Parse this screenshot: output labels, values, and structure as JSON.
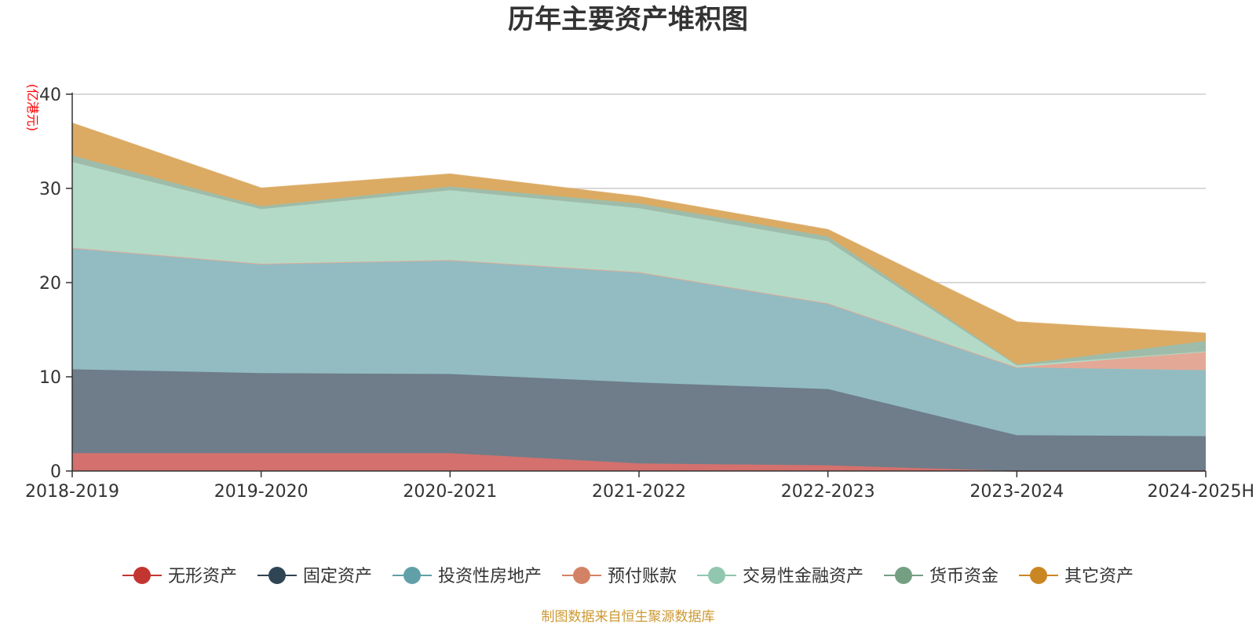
{
  "chart_data": {
    "type": "area",
    "stacked": true,
    "title": "历年主要资产堆积图",
    "unit_label": "(亿港元)",
    "source_note": "制图数据来自恒生聚源数据库",
    "categories": [
      "2018-2019",
      "2019-2020",
      "2020-2021",
      "2021-2022",
      "2022-2023",
      "2023-2024",
      "2024-2025H"
    ],
    "ylim": [
      0,
      40
    ],
    "yticks": [
      0,
      10,
      20,
      30,
      40
    ],
    "ytick_labels": [
      "0",
      "10",
      "20",
      "30",
      "40"
    ],
    "grid": true,
    "legend_position": "bottom",
    "series": [
      {
        "name": "无形资产",
        "color": "#c23531",
        "fill": "#d4706d",
        "values": [
          1.9,
          1.9,
          1.9,
          0.8,
          0.6,
          0.0,
          0.0
        ]
      },
      {
        "name": "固定资产",
        "color": "#2f4554",
        "fill": "#6e7d89",
        "values": [
          8.9,
          8.5,
          8.4,
          8.6,
          8.1,
          3.8,
          3.7
        ]
      },
      {
        "name": "投资性房地产",
        "color": "#61a0a8",
        "fill": "#92bcc2",
        "values": [
          12.9,
          11.6,
          12.1,
          11.7,
          9.1,
          7.2,
          7.0
        ]
      },
      {
        "name": "预付账款",
        "color": "#d48265",
        "fill": "#e3a996",
        "values": [
          0.0,
          0.0,
          0.0,
          0.0,
          0.0,
          0.0,
          2.0
        ]
      },
      {
        "name": "交易性金融资产",
        "color": "#91c7ae",
        "fill": "#b3dac7",
        "values": [
          9.1,
          5.8,
          7.4,
          6.8,
          6.6,
          0.2,
          0.0
        ]
      },
      {
        "name": "货币资金",
        "color": "#749f83",
        "fill": "#9ebca9",
        "values": [
          0.7,
          0.3,
          0.4,
          0.5,
          0.5,
          0.1,
          1.1
        ]
      },
      {
        "name": "其它资产",
        "color": "#ca8622",
        "fill": "#dbaa63",
        "values": [
          3.4,
          1.9,
          1.3,
          0.7,
          0.7,
          4.5,
          0.8
        ]
      }
    ]
  }
}
